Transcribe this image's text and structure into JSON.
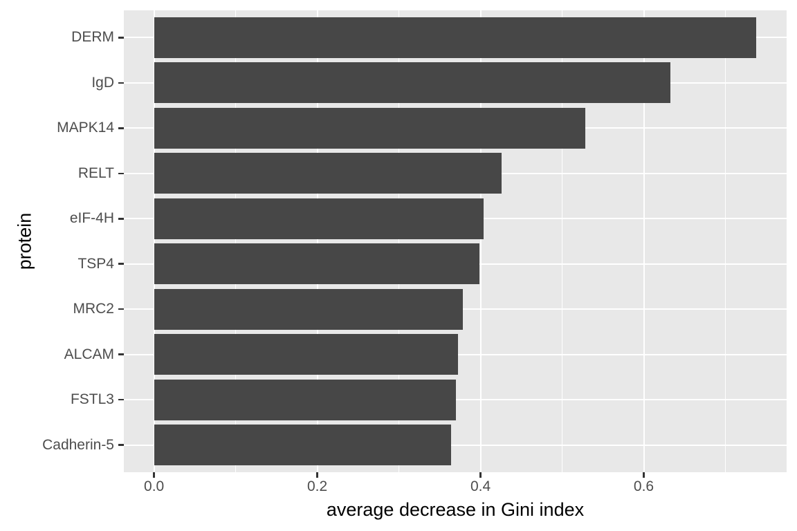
{
  "chart_data": {
    "type": "bar",
    "orientation": "horizontal",
    "title": "",
    "xlabel": "average decrease in Gini index",
    "ylabel": "protein",
    "categories": [
      "DERM",
      "IgD",
      "MAPK14",
      "RELT",
      "eIF-4H",
      "TSP4",
      "MRC2",
      "ALCAM",
      "FSTL3",
      "Cadherin-5"
    ],
    "values": [
      0.738,
      0.633,
      0.528,
      0.426,
      0.404,
      0.399,
      0.378,
      0.372,
      0.37,
      0.364
    ],
    "x_ticks": [
      0.0,
      0.2,
      0.4,
      0.6
    ],
    "x_tick_labels": [
      "0.0",
      "0.2",
      "0.4",
      "0.6"
    ],
    "x_minor_ticks": [
      0.1,
      0.3,
      0.5,
      0.7
    ],
    "xlim": [
      -0.037,
      0.775
    ],
    "y_positions_range": [
      0.4,
      10.6
    ],
    "bar_width_fraction": 0.9,
    "grid": "major-and-minor-vertical, major-horizontal",
    "legend": "none",
    "theme": "ggplot2 theme_gray",
    "colors": {
      "bar_fill": "#474747",
      "panel_background": "#E8E8E8",
      "gridline": "#FFFFFF",
      "tick_mark": "#333333",
      "tick_label": "#4D4D4D",
      "axis_title": "#000000",
      "figure_background": "#FFFFFF"
    }
  }
}
